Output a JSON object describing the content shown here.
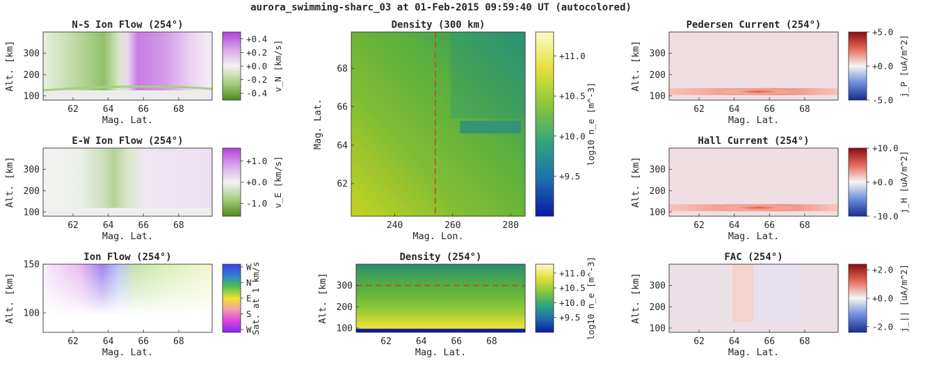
{
  "figure": {
    "title": "aurora_swimming-sharc_03 at 01-Feb-2015 09:59:40 UT (autocolored)"
  },
  "chart_data": [
    {
      "id": "ns-ion-flow",
      "type": "heatmap",
      "title": "N-S Ion Flow (254°)",
      "xlabel": "Mag. Lat.",
      "ylabel": "Alt. [km]",
      "xlim": [
        60.3,
        69.9
      ],
      "ylim": [
        80,
        400
      ],
      "xticks": [
        "62",
        "64",
        "66",
        "68"
      ],
      "yticks": [
        "100",
        "200",
        "300"
      ],
      "colorbar": {
        "label": "v_N [km/s]",
        "ticks": [
          "+0.4",
          "+0.2",
          "+0.0",
          "-0.2",
          "-0.4"
        ],
        "range": [
          -0.5,
          0.5
        ],
        "colormap": [
          "#4f8a1f",
          "#a8cf7e",
          "#f3f3f3",
          "#d9a4ea",
          "#b040d8"
        ]
      }
    },
    {
      "id": "density-300km",
      "type": "heatmap",
      "title": "Density (300 km)",
      "xlabel": "Mag. Lon.",
      "ylabel": "Mag. Lat.",
      "xlim": [
        225,
        285
      ],
      "ylim": [
        60.3,
        69.9
      ],
      "xticks": [
        "240",
        "260",
        "280"
      ],
      "yticks": [
        "62",
        "64",
        "66",
        "68"
      ],
      "marker_line": {
        "axis": "x",
        "value": 254,
        "color": "#d23c2a"
      },
      "colorbar": {
        "label": "log10 n_e [m^-3]",
        "ticks": [
          "+11.0",
          "+10.5",
          "+10.0",
          "+9.5"
        ],
        "range": [
          9.0,
          11.3
        ],
        "colormap": [
          "#0a1aa0",
          "#1e6fb0",
          "#31a47e",
          "#8ac63a",
          "#e3e03a",
          "#fbfbc8"
        ]
      }
    },
    {
      "id": "pedersen-current",
      "type": "heatmap",
      "title": "Pedersen Current (254°)",
      "xlabel": "Mag. Lat.",
      "ylabel": "Alt. [km]",
      "xlim": [
        60.3,
        69.9
      ],
      "ylim": [
        80,
        400
      ],
      "xticks": [
        "62",
        "64",
        "66",
        "68"
      ],
      "yticks": [
        "100",
        "200",
        "300"
      ],
      "colorbar": {
        "label": "j_P [uA/m^2]",
        "ticks": [
          "+5.0",
          "+0.0",
          "-5.0"
        ],
        "range": [
          -5,
          5
        ],
        "colormap": [
          "#1a2e8f",
          "#6a8de0",
          "#f5f5f5",
          "#e56b5a",
          "#8b0a12"
        ]
      }
    },
    {
      "id": "ew-ion-flow",
      "type": "heatmap",
      "title": "E-W Ion Flow (254°)",
      "xlabel": "Mag. Lat.",
      "ylabel": "Alt. [km]",
      "xlim": [
        60.3,
        69.9
      ],
      "ylim": [
        80,
        400
      ],
      "xticks": [
        "62",
        "64",
        "66",
        "68"
      ],
      "yticks": [
        "100",
        "200",
        "300"
      ],
      "colorbar": {
        "label": "v_E [km/s]",
        "ticks": [
          "+1.0",
          "+0.0",
          "-1.0"
        ],
        "range": [
          -1.6,
          1.6
        ],
        "colormap": [
          "#4f8a1f",
          "#a8cf7e",
          "#f3f3f3",
          "#d9a4ea",
          "#b040d8"
        ]
      }
    },
    {
      "id": "hall-current",
      "type": "heatmap",
      "title": "Hall Current (254°)",
      "xlabel": "Mag. Lat.",
      "ylabel": "Alt. [km]",
      "xlim": [
        60.3,
        69.9
      ],
      "ylim": [
        80,
        400
      ],
      "xticks": [
        "62",
        "64",
        "66",
        "68"
      ],
      "yticks": [
        "100",
        "200",
        "300"
      ],
      "colorbar": {
        "label": "j_H [uA/m^2]",
        "ticks": [
          "+10.0",
          "+0.0",
          "-10.0"
        ],
        "range": [
          -10,
          10
        ],
        "colormap": [
          "#1a2e8f",
          "#6a8de0",
          "#f5f5f5",
          "#e56b5a",
          "#8b0a12"
        ]
      }
    },
    {
      "id": "ion-flow",
      "type": "heatmap",
      "title": "Ion Flow (254°)",
      "xlabel": "Mag. Lat.",
      "ylabel": "Alt. [km]",
      "xlim": [
        60.3,
        69.9
      ],
      "ylim": [
        80,
        150
      ],
      "xticks": [
        "62",
        "64",
        "66",
        "68"
      ],
      "yticks": [
        "100",
        "150"
      ],
      "colorbar": {
        "label": "Sat. at 1 km/s",
        "ticks": [
          "W",
          "N",
          "E",
          "S",
          "W"
        ],
        "range": [
          0,
          4
        ],
        "colormap": [
          "#7a2ff0",
          "#e040e0",
          "#f0a0b0",
          "#f0e030",
          "#50c050",
          "#2f7fd0",
          "#4040f0"
        ]
      }
    },
    {
      "id": "density-254",
      "type": "heatmap",
      "title": "Density (254°)",
      "xlabel": "Mag. Lat.",
      "ylabel": "Alt. [km]",
      "xlim": [
        60.3,
        69.9
      ],
      "ylim": [
        80,
        400
      ],
      "xticks": [
        "62",
        "64",
        "66",
        "68"
      ],
      "yticks": [
        "100",
        "200",
        "300"
      ],
      "marker_line": {
        "axis": "y",
        "value": 300,
        "color": "#d23c2a"
      },
      "colorbar": {
        "label": "log10 n_e [m^-3]",
        "ticks": [
          "+11.0",
          "+10.5",
          "+10.0",
          "+9.5"
        ],
        "range": [
          9.0,
          11.3
        ],
        "colormap": [
          "#0a1aa0",
          "#1e6fb0",
          "#31a47e",
          "#8ac63a",
          "#e3e03a",
          "#fbfbc8"
        ]
      }
    },
    {
      "id": "fac",
      "type": "heatmap",
      "title": "FAC (254°)",
      "xlabel": "Mag. Lat.",
      "ylabel": "Alt. [km]",
      "xlim": [
        60.3,
        69.9
      ],
      "ylim": [
        80,
        400
      ],
      "xticks": [
        "62",
        "64",
        "66",
        "68"
      ],
      "yticks": [
        "100",
        "200",
        "300"
      ],
      "colorbar": {
        "label": "j_|| [uA/m^2]",
        "ticks": [
          "+2.0",
          "+0.0",
          "-2.0"
        ],
        "range": [
          -2.4,
          2.4
        ],
        "colormap": [
          "#1a2e8f",
          "#6a8de0",
          "#f5f5f5",
          "#e56b5a",
          "#8b0a12"
        ]
      }
    }
  ]
}
